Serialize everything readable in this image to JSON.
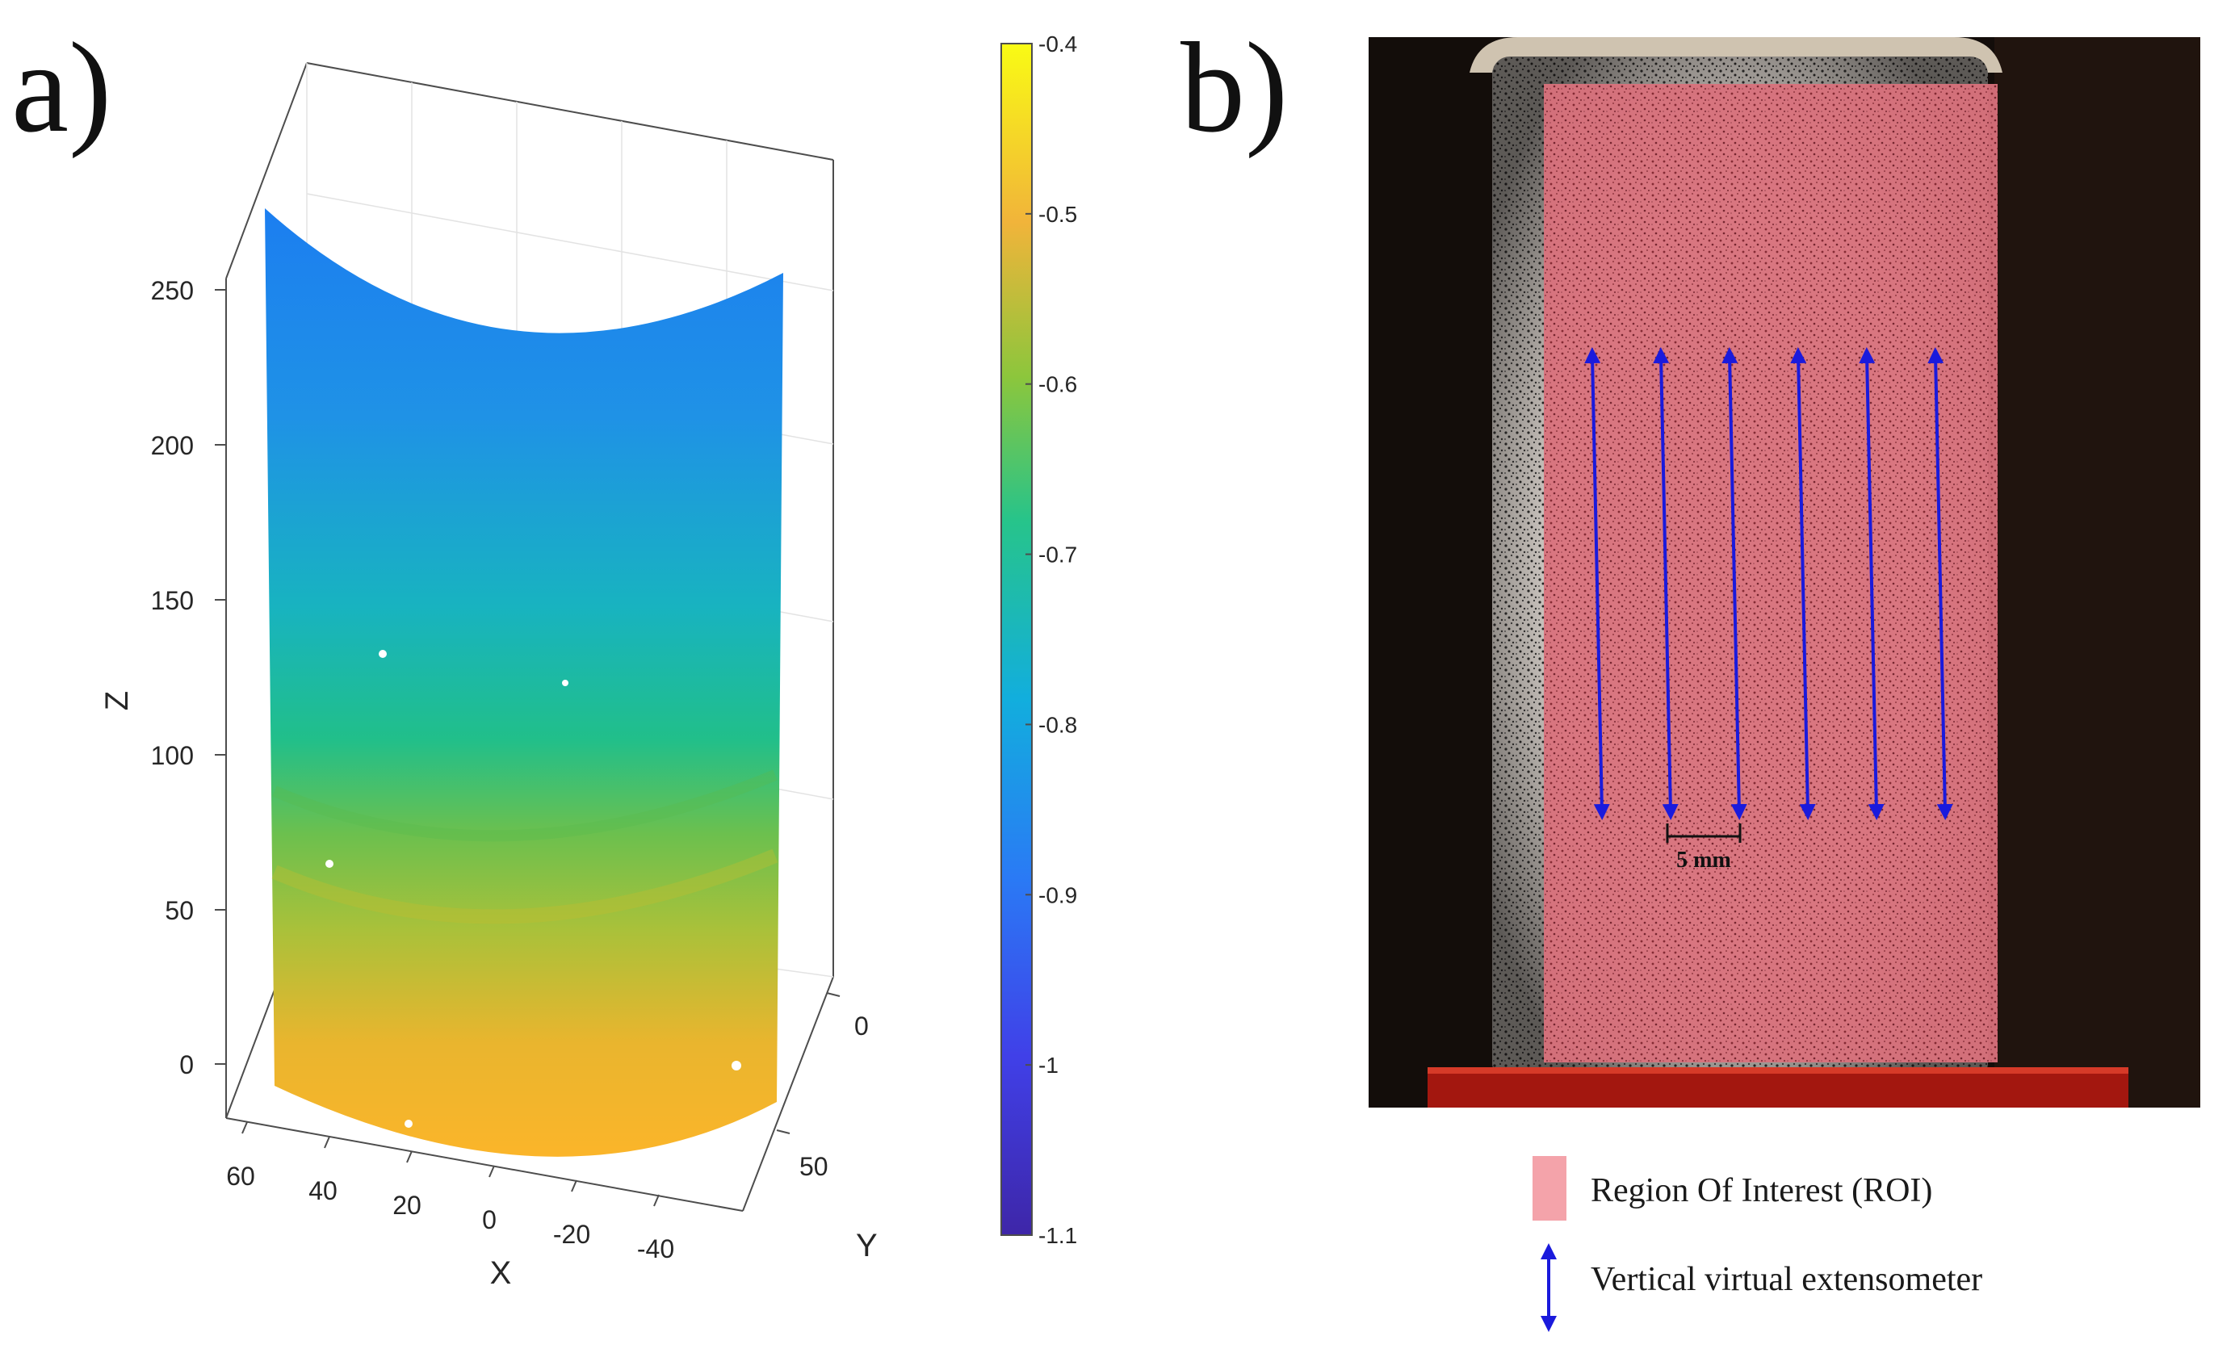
{
  "panel_a": {
    "label": "a)",
    "z_ticks": [
      "0",
      "50",
      "100",
      "150",
      "200",
      "250"
    ],
    "x_ticks": [
      "60",
      "40",
      "20",
      "0",
      "-20",
      "-40"
    ],
    "y_ticks": [
      "0",
      "50"
    ],
    "xlabel": "X",
    "ylabel": "Y",
    "zlabel": "Z",
    "colorbar_ticks": [
      "-0.4",
      "-0.5",
      "-0.6",
      "-0.7",
      "-0.8",
      "-0.9",
      "-1",
      "-1.1"
    ],
    "colorbar_range": [
      -1.1,
      -0.4
    ]
  },
  "panel_b": {
    "label": "b)",
    "extensometer_count": 6,
    "scale_label": "5 mm",
    "roi_color": "#f08a93",
    "arrow_color": "#1a1adc"
  },
  "legend": {
    "roi_label": "Region Of Interest (ROI)",
    "extensometer_label": "Vertical virtual extensometer"
  }
}
